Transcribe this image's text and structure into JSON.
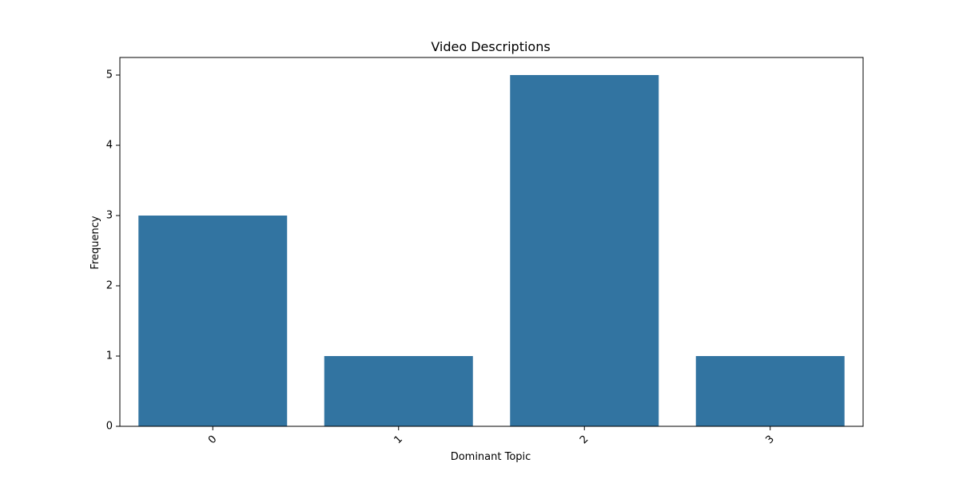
{
  "chart_data": {
    "type": "bar",
    "title": "Video Descriptions",
    "xlabel": "Dominant Topic",
    "ylabel": "Frequency",
    "categories": [
      "0",
      "1",
      "2",
      "3"
    ],
    "values": [
      3,
      1,
      5,
      1
    ],
    "ylim": [
      0,
      5.25
    ],
    "yticks": [
      0,
      1,
      2,
      3,
      4,
      5
    ],
    "grid": false,
    "bar_color": "#3274a1",
    "x_tick_rotation": -45
  }
}
